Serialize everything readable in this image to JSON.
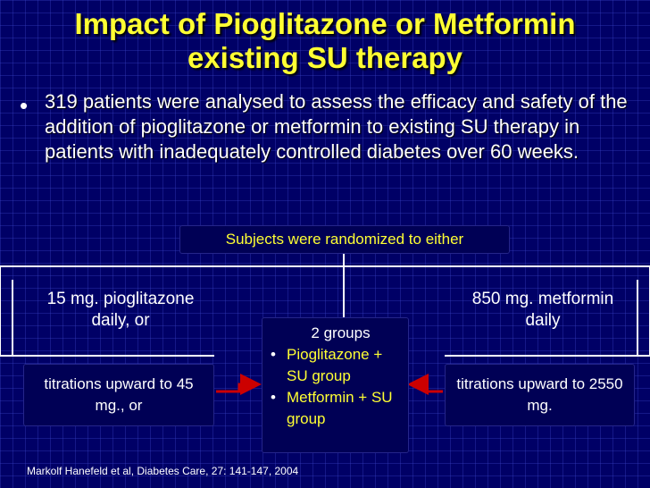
{
  "slide": {
    "title_line1": "Impact of Pioglitazone or Metformin",
    "title_line2": "existing SU therapy",
    "bullet": "319 patients were analysed to assess the efficacy and safety of the addition of pioglitazone or metformin to existing SU therapy in patients with inadequately controlled diabetes over 60 weeks.",
    "randomized_label": "Subjects were randomized to either",
    "left_dose_line1": "15 mg. pioglitazone",
    "left_dose_line2": "daily, or",
    "right_dose_line1": "850 mg. metformin",
    "right_dose_line2": "daily",
    "left_titration": "titrations upward to 45 mg.,  or",
    "right_titration": "titrations upward to 2550 mg.",
    "groups_heading": "2 groups",
    "groups": [
      "Pioglitazone + SU group",
      "Metformin + SU group"
    ],
    "citation": "Markolf Hanefeld et al, Diabetes Care, 27: 141-147, 2004"
  },
  "colors": {
    "background": "#000066",
    "title": "#FFFF33",
    "arrow": "#CC0000",
    "connector": "#FFFFFF"
  }
}
